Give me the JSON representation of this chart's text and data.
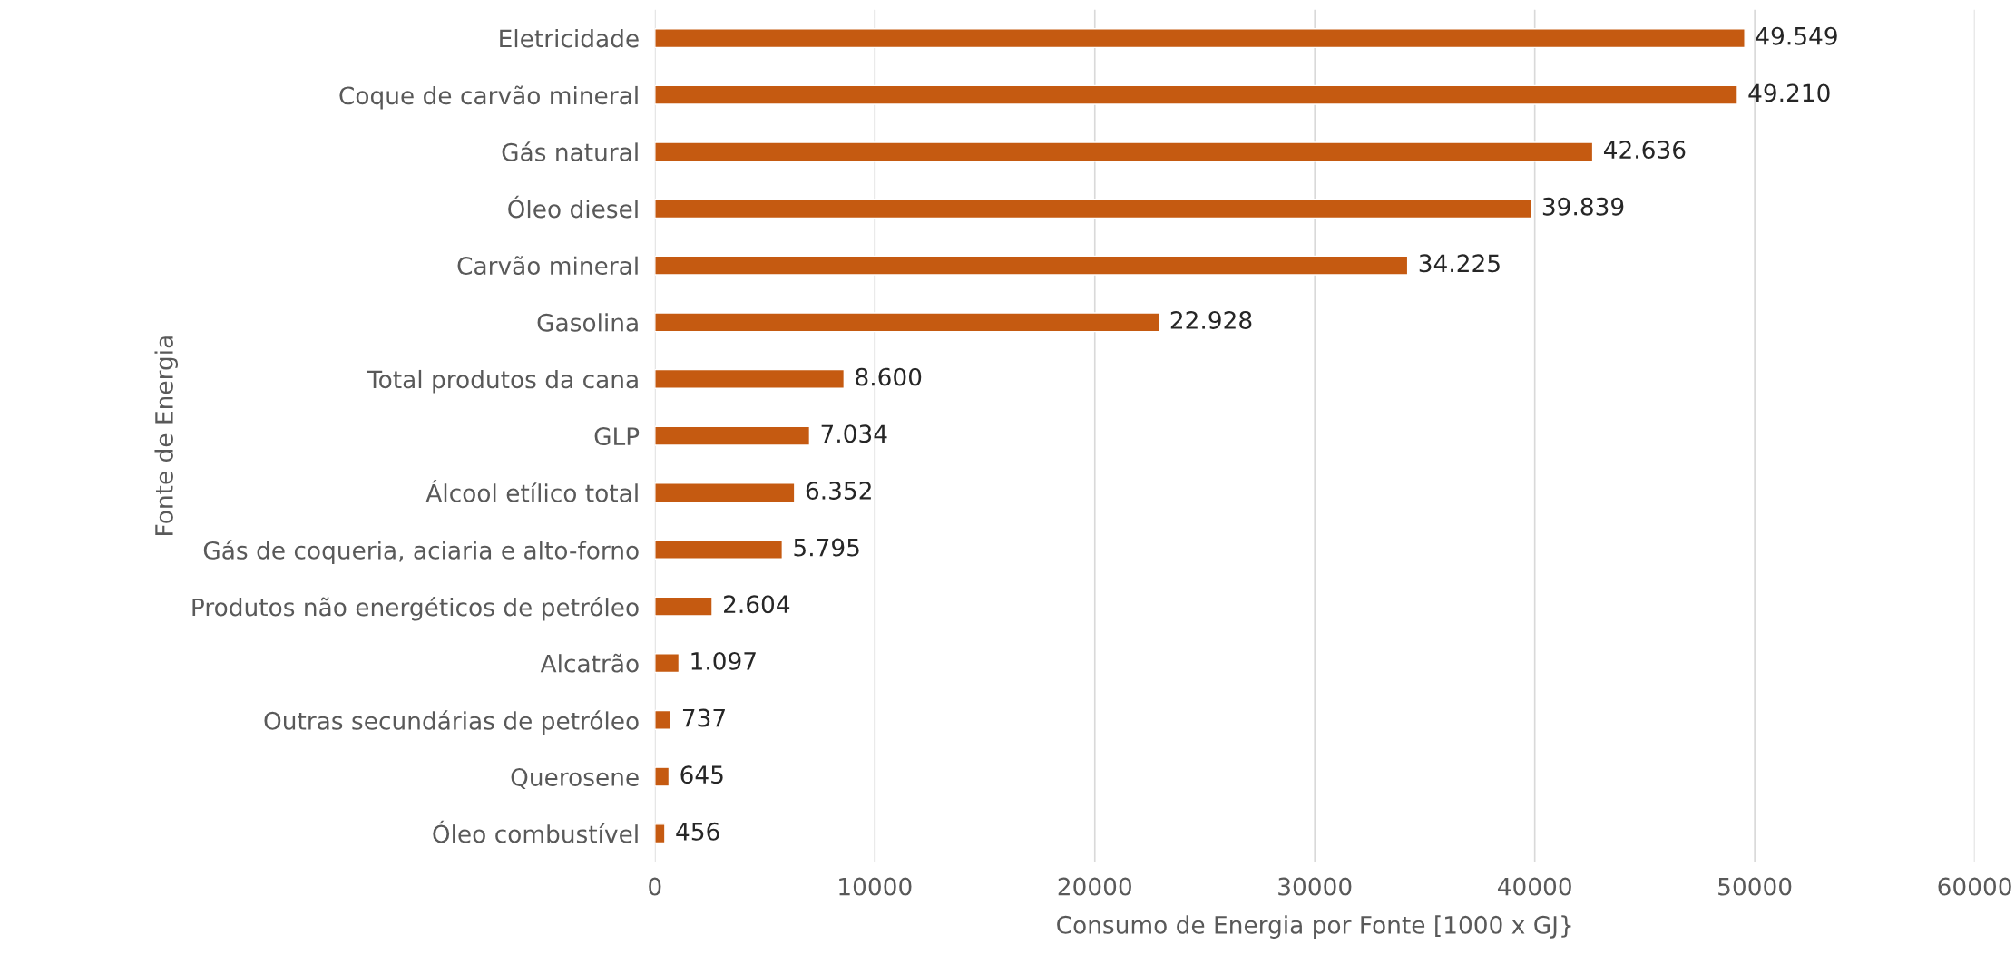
{
  "chart_data": {
    "type": "bar",
    "orientation": "horizontal",
    "xlabel": "Consumo de Energia por Fonte [1000 x GJ}",
    "ylabel": "Fonte de Energia",
    "categories": [
      "Eletricidade",
      "Coque de carvão mineral",
      "Gás natural",
      "Óleo diesel",
      "Carvão mineral",
      "Gasolina",
      "Total produtos da cana",
      "GLP",
      "Álcool etílico total",
      "Gás de coqueria, aciaria e alto-forno",
      "Produtos não energéticos de petróleo",
      "Alcatrão",
      "Outras secundárias de petróleo",
      "Querosene",
      "Óleo combustível"
    ],
    "values": [
      49549,
      49210,
      42636,
      39839,
      34225,
      22928,
      8600,
      7034,
      6352,
      5795,
      2604,
      1097,
      737,
      645,
      456
    ],
    "value_labels": [
      "49.549",
      "49.210",
      "42.636",
      "39.839",
      "34.225",
      "22.928",
      "8.600",
      "7.034",
      "6.352",
      "5.795",
      "2.604",
      "1.097",
      "737",
      "645",
      "456"
    ],
    "color": "#c55a11",
    "xlim": [
      0,
      60000
    ],
    "xticks": [
      0,
      10000,
      20000,
      30000,
      40000,
      50000,
      60000
    ],
    "grid": "x"
  }
}
